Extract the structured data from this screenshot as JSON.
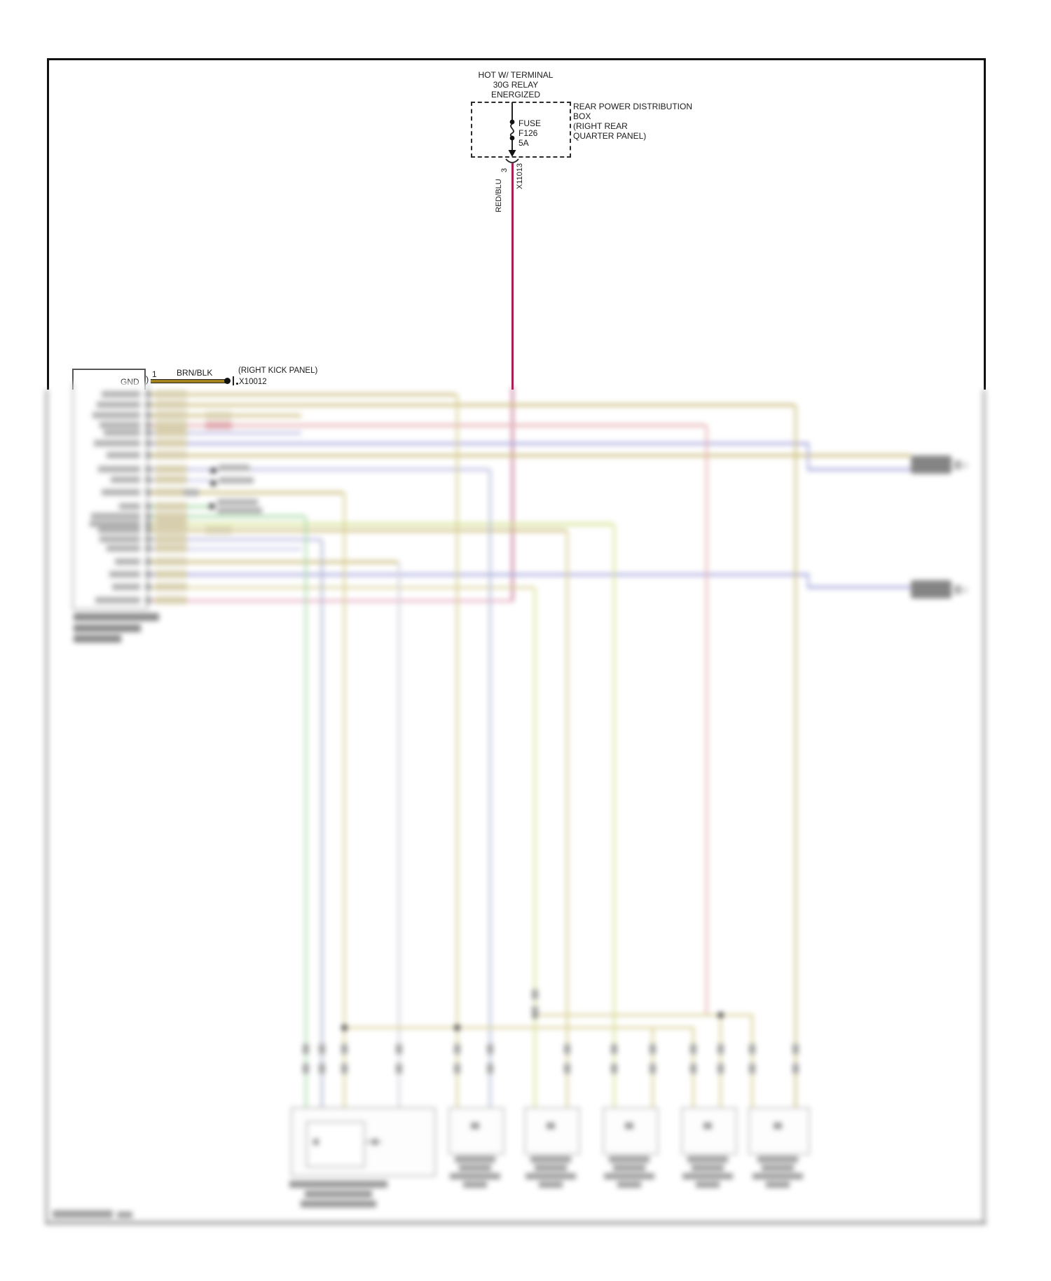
{
  "diagram": {
    "power_note": {
      "line1": "HOT W/ TERMINAL",
      "line2": "30G RELAY",
      "line3": "ENERGIZED"
    },
    "fuse": {
      "name": "FUSE",
      "id": "F126",
      "rating": "5A"
    },
    "power_box": {
      "line1": "REAR POWER DISTRIBUTION",
      "line2": "BOX",
      "line3": "(RIGHT REAR",
      "line4": "QUARTER PANEL)"
    },
    "feed_wire": {
      "pin": "3",
      "connector": "X11013",
      "color": "RED/BLU",
      "color_hex": "#a81e56"
    },
    "ground": {
      "pin_label": "GND",
      "pin_number": "1",
      "wire_color": "BRN/BLK",
      "wire_hex": "#a3841c",
      "location": "(RIGHT KICK PANEL)",
      "connector": "X10012"
    }
  }
}
